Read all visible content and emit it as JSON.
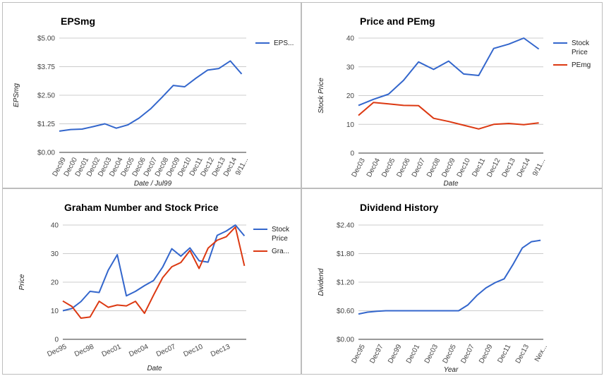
{
  "colors": {
    "blue": "#3366cc",
    "red": "#dc3912",
    "grid": "#cccccc",
    "axis": "#333333"
  },
  "chart_data": [
    {
      "id": "eps",
      "type": "line",
      "title": "EPSmg",
      "xlabel": "Date / Jul99",
      "ylabel": "EPSmg",
      "categories": [
        "Dec99",
        "Dec00",
        "Dec01",
        "Dec02",
        "Dec03",
        "Dec04",
        "Dec05",
        "Dec06",
        "Dec07",
        "Dec08",
        "Dec09",
        "Dec10",
        "Dec11",
        "Dec12",
        "Dec13",
        "Dec14",
        "9/11..."
      ],
      "tick_labels": [
        "Dec99",
        "Dec00",
        "Dec01",
        "Dec02",
        "Dec03",
        "Dec04",
        "Dec05",
        "Dec06",
        "Dec07",
        "Dec08",
        "Dec09",
        "Dec10",
        "Dec11",
        "Dec12",
        "Dec13",
        "Dec14",
        "9/11..."
      ],
      "x": [
        0,
        1,
        2,
        3,
        4,
        5,
        6,
        7,
        8,
        9,
        10,
        11,
        12,
        13,
        14,
        15,
        16
      ],
      "xlim": [
        0,
        16.4
      ],
      "ylim": [
        0,
        5
      ],
      "yticks": [
        0,
        1.25,
        2.5,
        3.75,
        5
      ],
      "ytick_labels": [
        "$0.00",
        "$1.25",
        "$2.50",
        "$3.75",
        "$5.00"
      ],
      "legend_position": "right",
      "series": [
        {
          "name": "EPS...",
          "color": "#3366cc",
          "values": [
            0.93,
            1.0,
            1.02,
            1.13,
            1.25,
            1.06,
            1.2,
            1.5,
            1.9,
            2.4,
            2.93,
            2.87,
            3.25,
            3.6,
            3.67,
            4.0,
            3.43
          ]
        }
      ]
    },
    {
      "id": "price-pe",
      "type": "line",
      "title": "Price and PEmg",
      "xlabel": "Date",
      "ylabel": "Stock Price",
      "categories": [
        "Dec03",
        "Dec04",
        "Dec05",
        "Dec06",
        "Dec07",
        "Dec08",
        "Dec09",
        "Dec10",
        "Dec11",
        "Dec12",
        "Dec13",
        "Dec14",
        "9/11..."
      ],
      "tick_labels": [
        "Dec03",
        "Dec04",
        "Dec05",
        "Dec06",
        "Dec07",
        "Dec08",
        "Dec09",
        "Dec10",
        "Dec11",
        "Dec12",
        "Dec13",
        "Dec14",
        "9/11..."
      ],
      "x": [
        0,
        1,
        2,
        3,
        4,
        5,
        6,
        7,
        8,
        9,
        10,
        11,
        12
      ],
      "xlim": [
        0,
        12.3
      ],
      "ylim": [
        0,
        40
      ],
      "yticks": [
        0,
        10,
        20,
        30,
        40
      ],
      "ytick_labels": [
        "0",
        "10",
        "20",
        "30",
        "40"
      ],
      "legend_position": "right",
      "series": [
        {
          "name": "Stock Price",
          "color": "#3366cc",
          "values": [
            16.6,
            18.7,
            20.5,
            25.3,
            31.7,
            29.1,
            32.0,
            27.5,
            27.0,
            36.4,
            37.9,
            40.0,
            36.2
          ]
        },
        {
          "name": "PEmg",
          "color": "#dc3912",
          "values": [
            13.1,
            17.6,
            17.1,
            16.6,
            16.5,
            12.1,
            11.0,
            9.7,
            8.4,
            10.0,
            10.3,
            9.9,
            10.5
          ]
        }
      ]
    },
    {
      "id": "graham",
      "type": "line",
      "title": "Graham Number and Stock Price",
      "xlabel": "Date",
      "ylabel": "Price",
      "categories": [
        "Dec95",
        "Dec96",
        "Dec97",
        "Dec98",
        "Dec99",
        "Dec00",
        "Dec01",
        "Dec02",
        "Dec03",
        "Dec04",
        "Dec05",
        "Dec06",
        "Dec07",
        "Dec08",
        "Dec09",
        "Dec10",
        "Dec11",
        "Dec12",
        "Dec13",
        "Dec14",
        "9/11"
      ],
      "tick_labels": [
        "Dec95",
        "Dec98",
        "Dec01",
        "Dec04",
        "Dec07",
        "Dec10",
        "Dec13"
      ],
      "tick_positions": [
        0,
        3,
        6,
        9,
        12,
        15,
        18
      ],
      "x": [
        0,
        1,
        2,
        3,
        4,
        5,
        6,
        7,
        8,
        9,
        10,
        11,
        12,
        13,
        14,
        15,
        16,
        17,
        18,
        19,
        20
      ],
      "xlim": [
        0,
        20.2
      ],
      "ylim": [
        0,
        40
      ],
      "yticks": [
        0,
        10,
        20,
        30,
        40
      ],
      "ytick_labels": [
        "0",
        "10",
        "20",
        "30",
        "40"
      ],
      "legend_position": "right",
      "series": [
        {
          "name": "Stock Price",
          "color": "#3366cc",
          "x": [
            0,
            1,
            2,
            3,
            4,
            5,
            6,
            7,
            8,
            9,
            10,
            11,
            12,
            13,
            14,
            15,
            16,
            17,
            18,
            19,
            20
          ],
          "values": [
            10.0,
            10.8,
            13.2,
            16.8,
            16.4,
            24.2,
            29.6,
            15.2,
            16.8,
            18.8,
            20.6,
            25.3,
            31.7,
            29.1,
            32.0,
            27.5,
            27.0,
            36.4,
            37.9,
            40.0,
            36.2
          ]
        },
        {
          "name": "Gra...",
          "color": "#dc3912",
          "x": [
            0,
            1,
            2,
            3,
            4,
            5,
            6,
            7,
            8,
            9,
            10,
            11,
            12,
            13,
            14,
            15,
            16,
            17,
            18,
            19,
            20
          ],
          "values": [
            13.4,
            11.5,
            7.4,
            7.8,
            13.3,
            11.2,
            12.0,
            11.7,
            13.3,
            9.1,
            15.5,
            21.6,
            25.4,
            26.9,
            31.1,
            24.8,
            31.9,
            34.7,
            35.9,
            39.3,
            25.7
          ]
        }
      ]
    },
    {
      "id": "dividend",
      "type": "line",
      "title": "Dividend History",
      "xlabel": "Year",
      "ylabel": "Dividend",
      "categories": [
        "Dec95",
        "Dec96",
        "Dec97",
        "Dec98",
        "Dec99",
        "Dec00",
        "Dec01",
        "Dec02",
        "Dec03",
        "Dec04",
        "Dec05",
        "Dec06",
        "Dec07",
        "Dec08",
        "Dec09",
        "Dec10",
        "Dec11",
        "Dec12",
        "Dec13",
        "Dec14",
        "Nex..."
      ],
      "tick_labels": [
        "Dec95",
        "Dec97",
        "Dec99",
        "Dec01",
        "Dec03",
        "Dec05",
        "Dec07",
        "Dec09",
        "Dec11",
        "Dec13",
        "Nex..."
      ],
      "tick_positions": [
        0,
        2,
        4,
        6,
        8,
        10,
        12,
        14,
        16,
        18,
        20
      ],
      "x": [
        0,
        1,
        2,
        3,
        4,
        5,
        6,
        7,
        8,
        9,
        10,
        11,
        12,
        13,
        14,
        15,
        16,
        17,
        18,
        19,
        20
      ],
      "xlim": [
        0,
        20.3
      ],
      "ylim": [
        0,
        2.4
      ],
      "yticks": [
        0,
        0.6,
        1.2,
        1.8,
        2.4
      ],
      "ytick_labels": [
        "$0.00",
        "$0.60",
        "$1.20",
        "$1.80",
        "$2.40"
      ],
      "legend_position": "none",
      "series": [
        {
          "name": "",
          "color": "#3366cc",
          "values": [
            0.53,
            0.57,
            0.59,
            0.6,
            0.6,
            0.6,
            0.6,
            0.6,
            0.6,
            0.6,
            0.6,
            0.6,
            0.72,
            0.92,
            1.08,
            1.19,
            1.27,
            1.58,
            1.92,
            2.05,
            2.08
          ]
        }
      ]
    }
  ]
}
